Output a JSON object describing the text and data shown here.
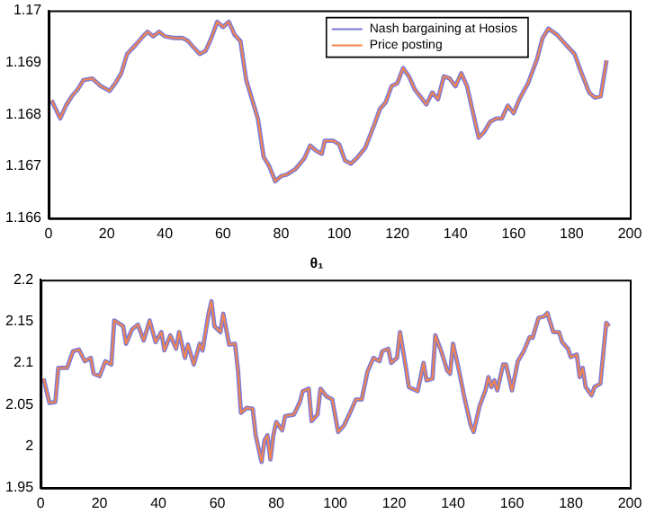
{
  "chart_data": [
    {
      "type": "line",
      "legend": "top right",
      "xlim": [
        0,
        200
      ],
      "xticks": [
        0,
        20,
        40,
        60,
        80,
        100,
        120,
        140,
        160,
        180,
        200
      ],
      "ylim": [
        1.166,
        1.17
      ],
      "yticks": [
        1.166,
        1.167,
        1.168,
        1.169,
        1.17
      ],
      "x": [
        1,
        4,
        6,
        8,
        10,
        12,
        15,
        18,
        21,
        23,
        25,
        27,
        30,
        32,
        34,
        36,
        38,
        40,
        43,
        46,
        48,
        50,
        52,
        54,
        56,
        58,
        60,
        62,
        64,
        66,
        68,
        70,
        72,
        74,
        76,
        78,
        80,
        82,
        85,
        88,
        90,
        92,
        94,
        95,
        98,
        100,
        102,
        104,
        106,
        109,
        112,
        114,
        116,
        118,
        120,
        122,
        124,
        126,
        130,
        132,
        134,
        136,
        138,
        140,
        142,
        144,
        146,
        148,
        150,
        152,
        154,
        156,
        158,
        160,
        162,
        165,
        168,
        170,
        172,
        175,
        178,
        181,
        183,
        186,
        188,
        190,
        192
      ],
      "series": [
        {
          "name": "Nash bargaining at Hosios",
          "color": "#7b7bd8",
          "values": [
            1.16827,
            1.16792,
            1.16817,
            1.16835,
            1.16848,
            1.16866,
            1.16869,
            1.16854,
            1.16845,
            1.1686,
            1.16879,
            1.16916,
            1.16934,
            1.16947,
            1.16959,
            1.1695,
            1.16959,
            1.1695,
            1.16947,
            1.16947,
            1.16941,
            1.16928,
            1.16916,
            1.16922,
            1.16947,
            1.16978,
            1.16968,
            1.16978,
            1.16953,
            1.16941,
            1.16866,
            1.16829,
            1.16792,
            1.16718,
            1.16699,
            1.16671,
            1.16681,
            1.16684,
            1.16695,
            1.16715,
            1.1674,
            1.1673,
            1.16724,
            1.16749,
            1.16749,
            1.16742,
            1.16711,
            1.16705,
            1.16715,
            1.16736,
            1.16779,
            1.1681,
            1.16823,
            1.16854,
            1.1686,
            1.16889,
            1.16873,
            1.16848,
            1.16819,
            1.16842,
            1.16829,
            1.16873,
            1.16869,
            1.16854,
            1.16879,
            1.16854,
            1.16804,
            1.16755,
            1.16767,
            1.16786,
            1.16792,
            1.16792,
            1.16817,
            1.16802,
            1.16829,
            1.1686,
            1.16905,
            1.16947,
            1.16965,
            1.16953,
            1.16934,
            1.16916,
            1.16885,
            1.16842,
            1.16832,
            1.16835,
            1.16904
          ]
        },
        {
          "name": "Price posting",
          "color": "#f4844c",
          "values": [
            1.16827,
            1.16792,
            1.16817,
            1.16835,
            1.16848,
            1.16866,
            1.16869,
            1.16854,
            1.16845,
            1.1686,
            1.16879,
            1.16916,
            1.16934,
            1.16947,
            1.16959,
            1.1695,
            1.16959,
            1.1695,
            1.16947,
            1.16947,
            1.16941,
            1.16928,
            1.16916,
            1.16922,
            1.16947,
            1.16978,
            1.16968,
            1.16978,
            1.16953,
            1.16941,
            1.16866,
            1.16829,
            1.16792,
            1.16718,
            1.16699,
            1.16671,
            1.16681,
            1.16684,
            1.16695,
            1.16715,
            1.1674,
            1.1673,
            1.16724,
            1.16749,
            1.16749,
            1.16742,
            1.16711,
            1.16705,
            1.16715,
            1.16736,
            1.16779,
            1.1681,
            1.16823,
            1.16854,
            1.1686,
            1.16889,
            1.16873,
            1.16848,
            1.16819,
            1.16842,
            1.16829,
            1.16873,
            1.16869,
            1.16854,
            1.16879,
            1.16854,
            1.16804,
            1.16755,
            1.16767,
            1.16786,
            1.16792,
            1.16792,
            1.16817,
            1.16802,
            1.16829,
            1.1686,
            1.16905,
            1.16947,
            1.16965,
            1.16953,
            1.16934,
            1.16916,
            1.16885,
            1.16842,
            1.16832,
            1.16835,
            1.16904
          ]
        }
      ]
    },
    {
      "type": "line",
      "title": "θ₁",
      "xlim": [
        0,
        200
      ],
      "xticks": [
        0,
        20,
        40,
        60,
        80,
        100,
        120,
        140,
        160,
        180,
        200
      ],
      "ylim": [
        1.95,
        2.2
      ],
      "yticks": [
        1.95,
        2,
        2.05,
        2.1,
        2.15,
        2.2
      ],
      "x": [
        1,
        3,
        5,
        6,
        9,
        11,
        13,
        15,
        17,
        18,
        20,
        22,
        24,
        25,
        28,
        29,
        31,
        33,
        35,
        37,
        39,
        41,
        42,
        44,
        46,
        47,
        49,
        50,
        52,
        54,
        55,
        57,
        58,
        59,
        61,
        62,
        64,
        66,
        67,
        68,
        70,
        72,
        73,
        75,
        76,
        77,
        78,
        79,
        80,
        82,
        83,
        86,
        88,
        89,
        91,
        92,
        94,
        95,
        97,
        99,
        101,
        103,
        105,
        107,
        109,
        111,
        113,
        115,
        116,
        118,
        119,
        121,
        122,
        124,
        125,
        128,
        130,
        131,
        133,
        134,
        136,
        138,
        139,
        140,
        142,
        144,
        146,
        147,
        149,
        151,
        152,
        153,
        154,
        155,
        157,
        158,
        160,
        162,
        164,
        166,
        167,
        169,
        171,
        172,
        174,
        176,
        177,
        179,
        180,
        182,
        183,
        184,
        185,
        187,
        188,
        190,
        192,
        193
      ],
      "series": [
        {
          "color": "#7b7bd8",
          "values": [
            2.081,
            2.052,
            2.053,
            2.094,
            2.094,
            2.114,
            2.116,
            2.102,
            2.106,
            2.087,
            2.084,
            2.102,
            2.098,
            2.151,
            2.144,
            2.123,
            2.14,
            2.146,
            2.127,
            2.151,
            2.125,
            2.137,
            2.115,
            2.133,
            2.117,
            2.137,
            2.106,
            2.122,
            2.098,
            2.123,
            2.115,
            2.159,
            2.174,
            2.144,
            2.137,
            2.159,
            2.122,
            2.123,
            2.091,
            2.04,
            2.046,
            2.045,
            2.013,
            1.981,
            2.007,
            2.013,
            1.984,
            2.013,
            2.029,
            2.019,
            2.036,
            2.038,
            2.053,
            2.066,
            2.069,
            2.03,
            2.038,
            2.069,
            2.06,
            2.056,
            2.017,
            2.025,
            2.04,
            2.056,
            2.056,
            2.09,
            2.106,
            2.102,
            2.114,
            2.117,
            2.1,
            2.106,
            2.137,
            2.094,
            2.071,
            2.066,
            2.1,
            2.079,
            2.081,
            2.133,
            2.114,
            2.091,
            2.087,
            2.123,
            2.091,
            2.056,
            2.025,
            2.017,
            2.048,
            2.067,
            2.083,
            2.071,
            2.079,
            2.067,
            2.098,
            2.098,
            2.067,
            2.102,
            2.114,
            2.131,
            2.13,
            2.154,
            2.156,
            2.16,
            2.137,
            2.137,
            2.125,
            2.117,
            2.107,
            2.11,
            2.083,
            2.094,
            2.071,
            2.061,
            2.071,
            2.075,
            2.148,
            2.144
          ]
        },
        {
          "color": "#f4844c",
          "values": [
            2.081,
            2.052,
            2.053,
            2.094,
            2.094,
            2.114,
            2.116,
            2.102,
            2.106,
            2.087,
            2.084,
            2.102,
            2.098,
            2.151,
            2.144,
            2.123,
            2.14,
            2.146,
            2.127,
            2.151,
            2.125,
            2.137,
            2.115,
            2.133,
            2.117,
            2.137,
            2.106,
            2.122,
            2.098,
            2.123,
            2.115,
            2.159,
            2.174,
            2.144,
            2.137,
            2.159,
            2.122,
            2.123,
            2.091,
            2.04,
            2.046,
            2.045,
            2.013,
            1.981,
            2.007,
            2.013,
            1.984,
            2.013,
            2.029,
            2.019,
            2.036,
            2.038,
            2.053,
            2.066,
            2.069,
            2.03,
            2.038,
            2.069,
            2.06,
            2.056,
            2.017,
            2.025,
            2.04,
            2.056,
            2.056,
            2.09,
            2.106,
            2.102,
            2.114,
            2.117,
            2.1,
            2.106,
            2.137,
            2.094,
            2.071,
            2.066,
            2.1,
            2.079,
            2.081,
            2.133,
            2.114,
            2.091,
            2.087,
            2.123,
            2.091,
            2.056,
            2.025,
            2.017,
            2.048,
            2.067,
            2.083,
            2.071,
            2.079,
            2.067,
            2.098,
            2.098,
            2.067,
            2.102,
            2.114,
            2.131,
            2.13,
            2.154,
            2.156,
            2.16,
            2.137,
            2.137,
            2.125,
            2.117,
            2.107,
            2.11,
            2.083,
            2.094,
            2.071,
            2.061,
            2.071,
            2.075,
            2.148,
            2.144
          ]
        }
      ]
    }
  ]
}
